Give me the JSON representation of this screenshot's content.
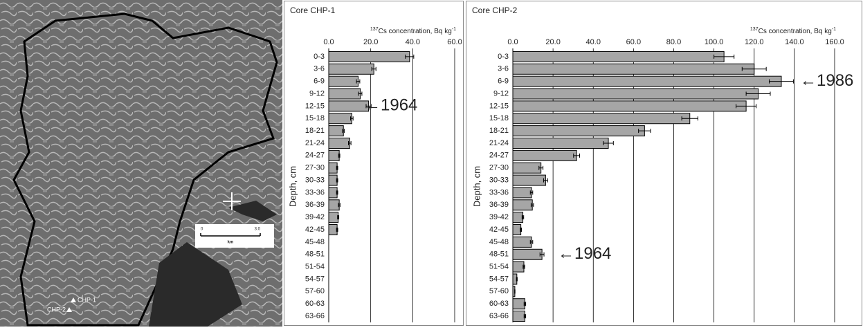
{
  "map": {
    "labels": [
      "CHP-1",
      "CHP-2"
    ],
    "scale": {
      "start": "0",
      "end": "3.0",
      "unit": "km"
    }
  },
  "chart_data": [
    {
      "type": "bar",
      "orientation": "horizontal",
      "title": "Core CHP-1",
      "xlabel_parts": [
        "137",
        "Cs concentration, Bq kg",
        "-1"
      ],
      "ylabel": "Depth, cm",
      "categories": [
        "0-3",
        "3-6",
        "6-9",
        "9-12",
        "12-15",
        "15-18",
        "18-21",
        "21-24",
        "24-27",
        "27-30",
        "30-33",
        "33-36",
        "36-39",
        "39-42",
        "42-45",
        "45-48",
        "48-51",
        "51-54",
        "54-57",
        "57-60",
        "60-63",
        "63-66"
      ],
      "series": [
        {
          "name": "137Cs",
          "color": "#a6a6a6",
          "values": [
            38.5,
            21.5,
            14,
            15,
            19,
            11,
            7,
            10,
            5,
            4,
            4,
            4,
            5,
            4.5,
            4,
            null,
            null,
            null,
            null,
            null,
            null,
            null
          ],
          "errors": [
            2,
            1,
            0.8,
            0.8,
            1.2,
            0.6,
            0.4,
            0.6,
            0.3,
            0.3,
            0.3,
            0.3,
            0.4,
            0.3,
            0.3,
            null,
            null,
            null,
            null,
            null,
            null,
            null
          ]
        }
      ],
      "xlim": [
        0,
        60
      ],
      "xticks": [
        {
          "value": 0,
          "label": "0.0"
        },
        {
          "value": 20,
          "label": "20.0"
        },
        {
          "value": 40,
          "label": "40.0"
        },
        {
          "value": 60,
          "label": "60.0"
        }
      ],
      "grid": true,
      "annotations": [
        "←1964"
      ]
    },
    {
      "type": "bar",
      "orientation": "horizontal",
      "title": "Core CHP-2",
      "xlabel_parts": [
        "137",
        "Cs concentration, Bq kg",
        "-1"
      ],
      "ylabel": "Depth, cm",
      "categories": [
        "0-3",
        "3-6",
        "6-9",
        "9-12",
        "12-15",
        "15-18",
        "18-21",
        "21-24",
        "24-27",
        "27-30",
        "30-33",
        "33-36",
        "36-39",
        "39-42",
        "42-45",
        "45-48",
        "48-51",
        "51-54",
        "54-57",
        "57-60",
        "60-63",
        "63-66"
      ],
      "series": [
        {
          "name": "137Cs",
          "color": "#a6a6a6",
          "values": [
            105,
            120,
            133.5,
            122,
            116,
            88,
            65.5,
            47.5,
            31.7,
            14,
            16.3,
            9.3,
            9.7,
            5,
            4,
            9.3,
            14.5,
            5.5,
            2,
            1,
            6,
            6
          ],
          "errors": [
            5,
            6,
            6,
            6,
            5,
            4,
            3,
            2.5,
            1.5,
            1,
            1,
            0.6,
            0.6,
            0.4,
            0.3,
            0.6,
            1,
            0.4,
            0.2,
            0.1,
            0.4,
            0.4
          ]
        }
      ],
      "xlim": [
        0,
        160
      ],
      "xticks": [
        {
          "value": 0,
          "label": "0.0"
        },
        {
          "value": 20,
          "label": "20.0"
        },
        {
          "value": 40,
          "label": "40.0"
        },
        {
          "value": 60,
          "label": "60.0"
        },
        {
          "value": 80,
          "label": "80.0"
        },
        {
          "value": 100,
          "label": "100.0"
        },
        {
          "value": 120,
          "label": "120.0"
        },
        {
          "value": 140,
          "label": "140.0"
        },
        {
          "value": 160,
          "label": "160.0"
        }
      ],
      "grid": true,
      "annotations": [
        "←1986",
        "←1964"
      ]
    }
  ]
}
